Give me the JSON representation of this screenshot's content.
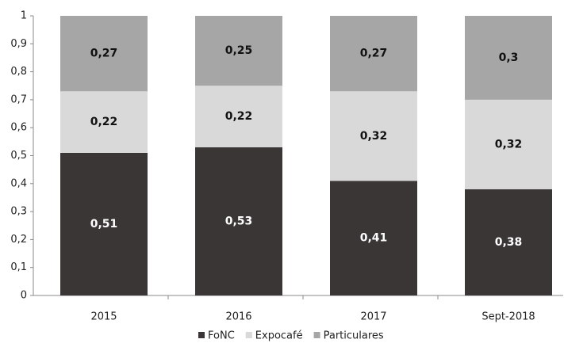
{
  "chart_data": {
    "type": "stacked_bar",
    "categories": [
      "2015",
      "2016",
      "2017",
      "Sept-2018"
    ],
    "series": [
      {
        "name": "FoNC",
        "color": "#3a3635",
        "values": [
          0.51,
          0.53,
          0.41,
          0.38
        ],
        "value_labels": [
          "0,51",
          "0,53",
          "0,41",
          "0,38"
        ]
      },
      {
        "name": "Expocafé",
        "color": "#d9d9d9",
        "values": [
          0.22,
          0.22,
          0.32,
          0.32
        ],
        "value_labels": [
          "0,22",
          "0,22",
          "0,32",
          "0,32"
        ]
      },
      {
        "name": "Particulares",
        "color": "#a6a6a6",
        "values": [
          0.27,
          0.25,
          0.27,
          0.3
        ],
        "value_labels": [
          "0,27",
          "0,25",
          "0,27",
          "0,3"
        ]
      }
    ],
    "ylim": [
      0,
      1
    ],
    "yticks": [
      0,
      {
        "value": 0.1,
        "label": "0,1"
      },
      {
        "value": 0.2,
        "label": "0,2"
      },
      {
        "value": 0.3,
        "label": "0,3"
      },
      {
        "value": 0.4,
        "label": "0,4"
      },
      {
        "value": 0.5,
        "label": "0,5"
      },
      {
        "value": 0.6,
        "label": "0,6"
      },
      {
        "value": 0.7,
        "label": "0,7"
      },
      {
        "value": 0.8,
        "label": "0,8"
      },
      {
        "value": 0.9,
        "label": "0,9"
      },
      1
    ],
    "grid": false,
    "legend": "bottom"
  }
}
